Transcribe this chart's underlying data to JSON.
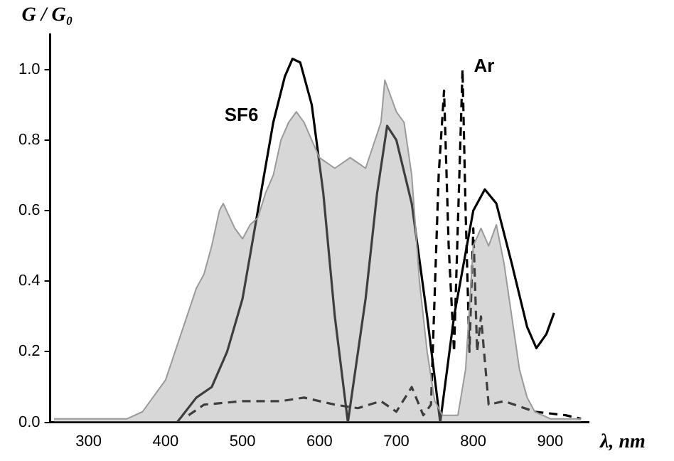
{
  "chart_data": {
    "type": "line",
    "xlabel": "λ, nm",
    "ylabel": "G / G₀",
    "xlim": [
      250,
      950
    ],
    "ylim": [
      0,
      1.1
    ],
    "xticks": [
      300,
      400,
      500,
      600,
      700,
      800,
      900
    ],
    "yticks": [
      {
        "value": 0,
        "label": "0.0"
      },
      {
        "value": 0.2,
        "label": "0.2"
      },
      {
        "value": 0.4,
        "label": "0.4"
      },
      {
        "value": 0.6,
        "label": "0.6"
      },
      {
        "value": 0.8,
        "label": "0.8"
      },
      {
        "value": 1,
        "label": "1.0"
      }
    ],
    "grid": false,
    "legend": false,
    "marker": "none",
    "series": [
      {
        "type": "area",
        "color": "#9a9a9a",
        "x": [
          255,
          300,
          350,
          370,
          400,
          420,
          440,
          450,
          460,
          470,
          475,
          490,
          500,
          510,
          520,
          530,
          540,
          550,
          560,
          570,
          580,
          590,
          600,
          620,
          640,
          660,
          680,
          685,
          700,
          710,
          720,
          730,
          740,
          750,
          760,
          780,
          790,
          800,
          810,
          820,
          830,
          840,
          850,
          860,
          870,
          880,
          900,
          940
        ],
        "values": [
          0.01,
          0.01,
          0.01,
          0.03,
          0.12,
          0.25,
          0.38,
          0.42,
          0.5,
          0.6,
          0.62,
          0.55,
          0.52,
          0.56,
          0.58,
          0.65,
          0.7,
          0.8,
          0.85,
          0.88,
          0.85,
          0.8,
          0.75,
          0.72,
          0.75,
          0.72,
          0.85,
          0.97,
          0.88,
          0.85,
          0.7,
          0.4,
          0.2,
          0.06,
          0.02,
          0.02,
          0.15,
          0.5,
          0.55,
          0.5,
          0.56,
          0.45,
          0.3,
          0.15,
          0.07,
          0.03,
          0.01,
          0.01
        ]
      },
      {
        "name": "SF6",
        "color": "#000000",
        "line_style": "solid",
        "x": [
          415,
          440,
          460,
          480,
          500,
          520,
          540,
          555,
          565,
          575,
          590,
          605,
          620,
          637,
          660,
          675,
          688,
          700,
          720,
          740,
          757,
          775,
          800,
          815,
          830,
          850,
          870,
          882,
          895,
          905
        ],
        "values": [
          0,
          0.07,
          0.1,
          0.2,
          0.35,
          0.6,
          0.85,
          0.98,
          1.03,
          1.02,
          0.9,
          0.65,
          0.3,
          0,
          0.35,
          0.65,
          0.84,
          0.8,
          0.62,
          0.3,
          0,
          0.3,
          0.6,
          0.66,
          0.62,
          0.45,
          0.27,
          0.21,
          0.25,
          0.31
        ]
      },
      {
        "name": "Ar",
        "color": "#000000",
        "line_style": "dashed",
        "x": [
          430,
          450,
          500,
          550,
          580,
          620,
          650,
          680,
          700,
          720,
          735,
          745,
          755,
          762,
          768,
          775,
          786,
          790,
          795,
          800,
          805,
          810,
          820,
          840,
          880,
          920,
          940
        ],
        "values": [
          0.02,
          0.05,
          0.06,
          0.06,
          0.07,
          0.05,
          0.04,
          0.06,
          0.03,
          0.1,
          0.02,
          0.05,
          0.7,
          0.94,
          0.5,
          0.2,
          1.0,
          0.6,
          0.2,
          0.55,
          0.2,
          0.3,
          0.05,
          0.06,
          0.03,
          0.02,
          0.01
        ]
      }
    ]
  }
}
